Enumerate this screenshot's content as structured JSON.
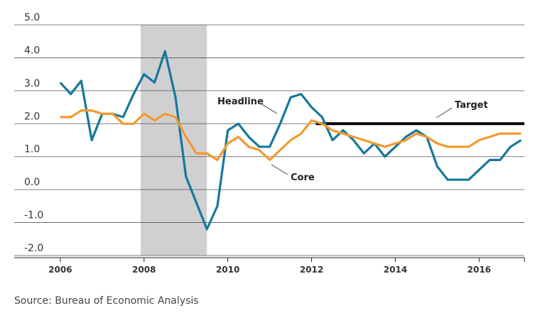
{
  "chart_data": {
    "type": "line",
    "source": "Source: Bureau of Economic Analysis",
    "x": [
      2006,
      2006.25,
      2006.5,
      2006.75,
      2007,
      2007.25,
      2007.5,
      2007.75,
      2008,
      2008.25,
      2008.5,
      2008.75,
      2009,
      2009.25,
      2009.5,
      2009.75,
      2010,
      2010.25,
      2010.5,
      2010.75,
      2011,
      2011.25,
      2011.5,
      2011.75,
      2012,
      2012.25,
      2012.5,
      2012.75,
      2013,
      2013.25,
      2013.5,
      2013.75,
      2014,
      2014.25,
      2014.5,
      2014.75,
      2015,
      2015.25,
      2015.5,
      2015.75,
      2016,
      2016.25,
      2016.5,
      2016.75,
      2017
    ],
    "series": [
      {
        "name": "Headline",
        "color": "#17789a",
        "values": [
          3.25,
          2.9,
          3.3,
          1.5,
          2.3,
          2.3,
          2.2,
          2.9,
          3.5,
          3.25,
          4.2,
          2.8,
          0.4,
          -0.4,
          -1.2,
          -0.5,
          1.8,
          2.0,
          1.6,
          1.3,
          1.3,
          2.0,
          2.8,
          2.9,
          2.5,
          2.2,
          1.5,
          1.8,
          1.5,
          1.1,
          1.4,
          1.0,
          1.3,
          1.6,
          1.8,
          1.6,
          0.7,
          0.3,
          0.3,
          0.3,
          0.6,
          0.9,
          0.9,
          1.3,
          1.5
        ]
      },
      {
        "name": "Core",
        "color": "#f39a2b",
        "values": [
          2.2,
          2.2,
          2.4,
          2.4,
          2.3,
          2.3,
          2.0,
          2.0,
          2.3,
          2.1,
          2.3,
          2.2,
          1.6,
          1.1,
          1.1,
          0.9,
          1.4,
          1.6,
          1.3,
          1.2,
          0.9,
          1.2,
          1.5,
          1.7,
          2.1,
          2.0,
          1.8,
          1.7,
          1.6,
          1.5,
          1.4,
          1.3,
          1.4,
          1.5,
          1.7,
          1.6,
          1.4,
          1.3,
          1.3,
          1.3,
          1.5,
          1.6,
          1.7,
          1.7,
          1.7
        ]
      }
    ],
    "target": {
      "label": "Target",
      "value": 2,
      "start": 2012.1,
      "color": "#000000"
    },
    "shaded_periods": [
      [
        2007.92,
        2009.5
      ]
    ],
    "shade_color": "#d0d0d2",
    "xlim": [
      2004.9,
      2017.08
    ],
    "xticks": [
      2006,
      2008,
      2010,
      2012,
      2014,
      2016
    ],
    "ylim": [
      -2,
      5
    ],
    "yticks": [
      {
        "value": -2,
        "label": "-2.0"
      },
      {
        "value": -1,
        "label": "-1.0"
      },
      {
        "value": 0,
        "label": "0.0"
      },
      {
        "value": 1,
        "label": "1.0"
      },
      {
        "value": 2,
        "label": "2.0"
      },
      {
        "value": 3,
        "label": "3.0"
      },
      {
        "value": 4,
        "label": "4.0"
      },
      {
        "value": 5,
        "label": "5.0"
      }
    ],
    "grid": true
  }
}
